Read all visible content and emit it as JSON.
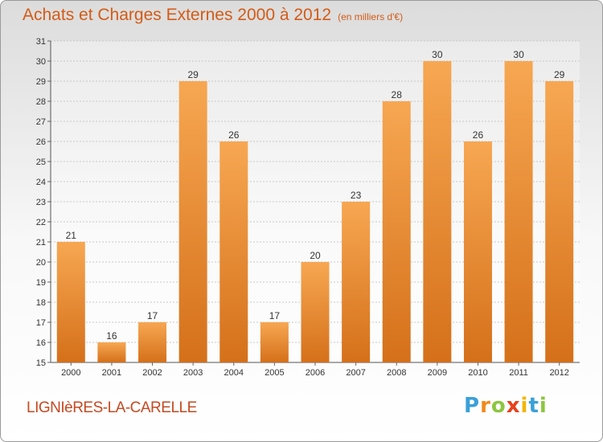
{
  "header": {
    "title": "Achats et Charges Externes 2000 à 2012",
    "subtitle": "(en milliers d'€)"
  },
  "footer": {
    "commune": "LIGNIèRES-LA-CARELLE",
    "logo": {
      "letters": [
        "P",
        "r",
        "o",
        "x",
        "i",
        "t",
        "i"
      ],
      "colors": [
        "#3aa0d8",
        "#f08a1c",
        "#8cc63f",
        "#e8401c",
        "#f2b600",
        "#3aa0d8",
        "#8cc63f"
      ]
    }
  },
  "colors": {
    "bar_light": "#f7a752",
    "bar_dark": "#d5701a",
    "title": "#d35b16"
  },
  "chart_data": {
    "type": "bar",
    "title": "Achats et Charges Externes 2000 à 2012",
    "subtitle": "(en milliers d'€)",
    "categories": [
      "2000",
      "2001",
      "2002",
      "2003",
      "2004",
      "2005",
      "2006",
      "2007",
      "2008",
      "2009",
      "2010",
      "2011",
      "2012"
    ],
    "values": [
      21,
      16,
      17,
      29,
      26,
      17,
      20,
      23,
      28,
      30,
      26,
      30,
      29
    ],
    "ylim": [
      15,
      31
    ],
    "yticks": [
      15,
      16,
      17,
      18,
      19,
      20,
      21,
      22,
      23,
      24,
      25,
      26,
      27,
      28,
      29,
      30,
      31
    ],
    "grid": true,
    "data_labels": true
  }
}
